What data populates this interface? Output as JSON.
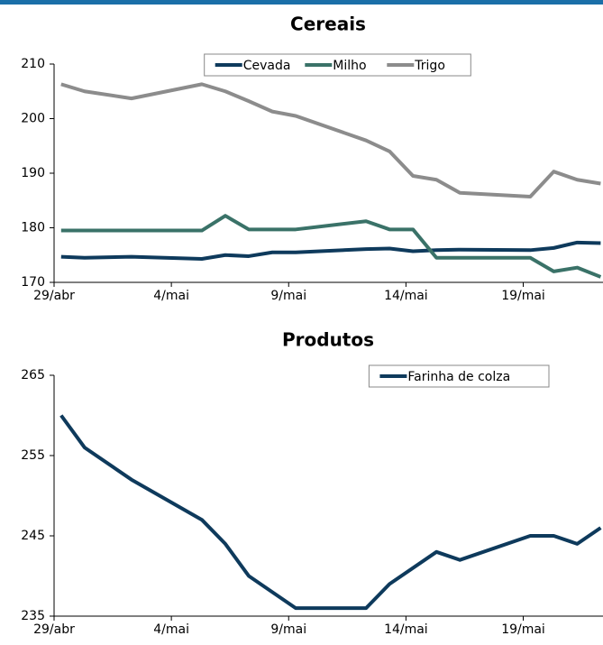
{
  "chart_data": [
    {
      "type": "line",
      "title": "Cereais",
      "x": [
        0.3,
        1.3,
        3.3,
        6.3,
        7.3,
        8.3,
        9.3,
        10.3,
        13.3,
        14.3,
        15.3,
        16.3,
        17.3,
        20.3,
        21.3,
        22.3,
        23.3
      ],
      "xlim": [
        0,
        23.4
      ],
      "xticks": [
        {
          "value": 0,
          "label": "29/abr"
        },
        {
          "value": 5,
          "label": "4/mai"
        },
        {
          "value": 10,
          "label": "9/mai"
        },
        {
          "value": 15,
          "label": "14/mai"
        },
        {
          "value": 20,
          "label": "19/mai"
        }
      ],
      "ylim": [
        170,
        210
      ],
      "yticks": [
        170,
        180,
        190,
        200,
        210
      ],
      "legend": "upper center",
      "series": [
        {
          "name": "Cevada",
          "color": "#0e3a5c",
          "values": [
            174.7,
            174.5,
            174.7,
            174.3,
            175,
            174.8,
            175.5,
            175.5,
            176.1,
            176.2,
            175.7,
            175.9,
            176,
            175.9,
            176.3,
            177.3,
            177.2
          ]
        },
        {
          "name": "Milho",
          "color": "#3a7268",
          "values": [
            179.5,
            179.5,
            179.5,
            179.5,
            182.2,
            179.7,
            179.7,
            179.7,
            181.2,
            179.7,
            179.7,
            174.5,
            174.5,
            174.5,
            172,
            172.7,
            171
          ]
        },
        {
          "name": "Trigo",
          "color": "#8c8c8c",
          "values": [
            206.3,
            205,
            203.7,
            206.3,
            205,
            203.2,
            201.3,
            200.5,
            196,
            194,
            189.5,
            188.8,
            186.4,
            185.7,
            190.3,
            188.8,
            188.1
          ]
        }
      ]
    },
    {
      "type": "line",
      "title": "Produtos",
      "x": [
        0.3,
        1.3,
        3.3,
        6.3,
        7.3,
        8.3,
        10.3,
        13.3,
        14.3,
        16.3,
        17.3,
        20.3,
        21.3,
        22.3,
        23.3
      ],
      "xlim": [
        0,
        23.4
      ],
      "xticks": [
        {
          "value": 0,
          "label": "29/abr"
        },
        {
          "value": 5,
          "label": "4/mai"
        },
        {
          "value": 10,
          "label": "9/mai"
        },
        {
          "value": 15,
          "label": "14/mai"
        },
        {
          "value": 20,
          "label": "19/mai"
        }
      ],
      "ylim": [
        235,
        265
      ],
      "yticks": [
        235,
        245,
        255,
        265
      ],
      "legend": "upper right",
      "series": [
        {
          "name": "Farinha de colza",
          "color": "#0e3a5c",
          "values": [
            260,
            256,
            252,
            247,
            244,
            240,
            236,
            236,
            239,
            243,
            242,
            245,
            245,
            244,
            246
          ]
        }
      ]
    }
  ]
}
